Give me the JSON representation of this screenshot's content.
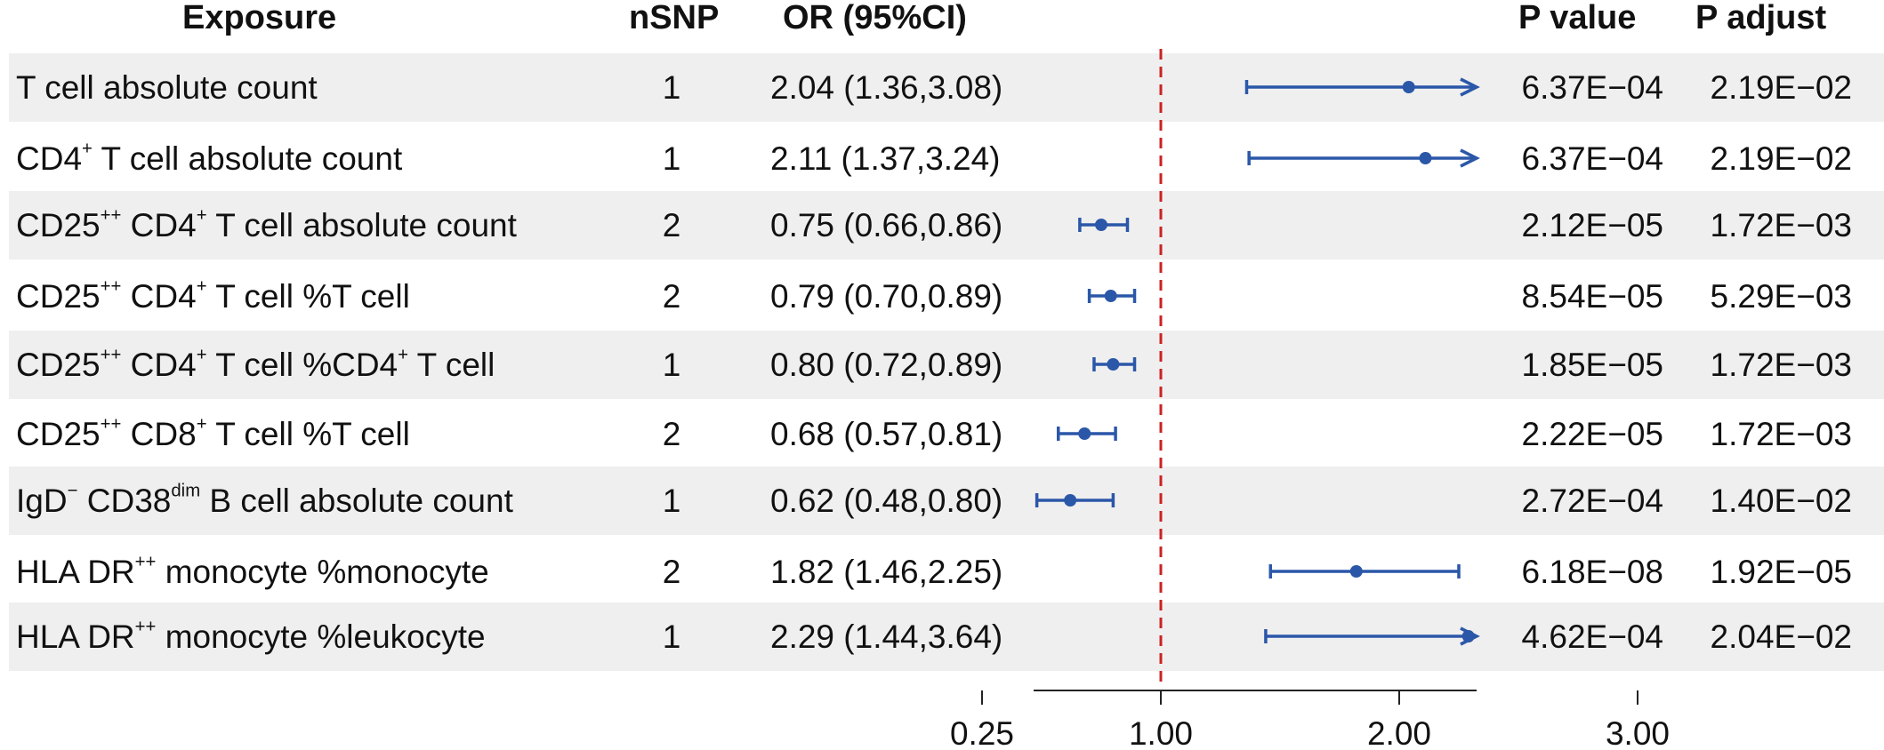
{
  "headers": {
    "exposure": "Exposure",
    "nsnp": "nSNP",
    "or": "OR (95%CI)",
    "pvalue": "P value",
    "padjust": "P adjust"
  },
  "rows": [
    {
      "exposure_parts": [
        [
          "T cell absolute count",
          ""
        ]
      ],
      "nsnp": "1",
      "or_text": "2.04 (1.36,3.08)",
      "p": "6.37E−04",
      "padj": "2.19E−02"
    },
    {
      "exposure_parts": [
        [
          "CD4",
          ""
        ],
        [
          "+",
          "sup"
        ],
        [
          " T cell absolute count",
          ""
        ]
      ],
      "nsnp": "1",
      "or_text": "2.11 (1.37,3.24)",
      "p": "6.37E−04",
      "padj": "2.19E−02"
    },
    {
      "exposure_parts": [
        [
          "CD25",
          ""
        ],
        [
          "++",
          "sup"
        ],
        [
          " CD4",
          ""
        ],
        [
          "+",
          "sup"
        ],
        [
          " T cell absolute count",
          ""
        ]
      ],
      "nsnp": "2",
      "or_text": "0.75 (0.66,0.86)",
      "p": "2.12E−05",
      "padj": "1.72E−03"
    },
    {
      "exposure_parts": [
        [
          "CD25",
          ""
        ],
        [
          "++",
          "sup"
        ],
        [
          " CD4",
          ""
        ],
        [
          "+",
          "sup"
        ],
        [
          " T cell %T cell",
          ""
        ]
      ],
      "nsnp": "2",
      "or_text": "0.79 (0.70,0.89)",
      "p": "8.54E−05",
      "padj": "5.29E−03"
    },
    {
      "exposure_parts": [
        [
          "CD25",
          ""
        ],
        [
          "++",
          "sup"
        ],
        [
          " CD4",
          ""
        ],
        [
          "+",
          "sup"
        ],
        [
          " T cell %CD4",
          ""
        ],
        [
          "+",
          "sup"
        ],
        [
          " T cell",
          ""
        ]
      ],
      "nsnp": "1",
      "or_text": "0.80 (0.72,0.89)",
      "p": "1.85E−05",
      "padj": "1.72E−03"
    },
    {
      "exposure_parts": [
        [
          "CD25",
          ""
        ],
        [
          "++",
          "sup"
        ],
        [
          " CD8",
          ""
        ],
        [
          "+",
          "sup"
        ],
        [
          " T cell %T cell",
          ""
        ]
      ],
      "nsnp": "2",
      "or_text": "0.68 (0.57,0.81)",
      "p": "2.22E−05",
      "padj": "1.72E−03"
    },
    {
      "exposure_parts": [
        [
          "IgD",
          ""
        ],
        [
          "−",
          "sup"
        ],
        [
          " CD38",
          ""
        ],
        [
          "dim",
          "sup"
        ],
        [
          " B cell absolute count",
          ""
        ]
      ],
      "nsnp": "1",
      "or_text": "0.62 (0.48,0.80)",
      "p": "2.72E−04",
      "padj": "1.40E−02"
    },
    {
      "exposure_parts": [
        [
          "HLA DR",
          ""
        ],
        [
          "++",
          "sup"
        ],
        [
          " monocyte %monocyte",
          ""
        ]
      ],
      "nsnp": "2",
      "or_text": "1.82 (1.46,2.25)",
      "p": "6.18E−08",
      "padj": "1.92E−05"
    },
    {
      "exposure_parts": [
        [
          "HLA DR",
          ""
        ],
        [
          "++",
          "sup"
        ],
        [
          " monocyte %leukocyte",
          ""
        ]
      ],
      "nsnp": "1",
      "or_text": "2.29 (1.44,3.64)",
      "p": "4.62E−04",
      "padj": "2.04E−02"
    }
  ],
  "chart_data": {
    "type": "forest",
    "reference_line": 1.0,
    "xlim": [
      0,
      3.5
    ],
    "xticks": [
      0.25,
      1.0,
      2.0,
      3.0
    ],
    "xtick_labels": [
      "0.25",
      "1.00",
      "2.00",
      "3.00"
    ],
    "series": [
      {
        "values": [
          {
            "or": 2.04,
            "lo": 1.36,
            "hi": 3.08
          },
          {
            "or": 2.11,
            "lo": 1.37,
            "hi": 3.24
          },
          {
            "or": 0.75,
            "lo": 0.66,
            "hi": 0.86
          },
          {
            "or": 0.79,
            "lo": 0.7,
            "hi": 0.89
          },
          {
            "or": 0.8,
            "lo": 0.72,
            "hi": 0.89
          },
          {
            "or": 0.68,
            "lo": 0.57,
            "hi": 0.81
          },
          {
            "or": 0.62,
            "lo": 0.48,
            "hi": 0.8
          },
          {
            "or": 1.82,
            "lo": 1.46,
            "hi": 2.25
          },
          {
            "or": 2.29,
            "lo": 1.44,
            "hi": 3.64,
            "clipped": true
          }
        ]
      }
    ]
  },
  "colors": {
    "point": "#2b57a8",
    "ref_line": "#cc2222",
    "row_shade": "#efefef",
    "axis": "#222222"
  }
}
